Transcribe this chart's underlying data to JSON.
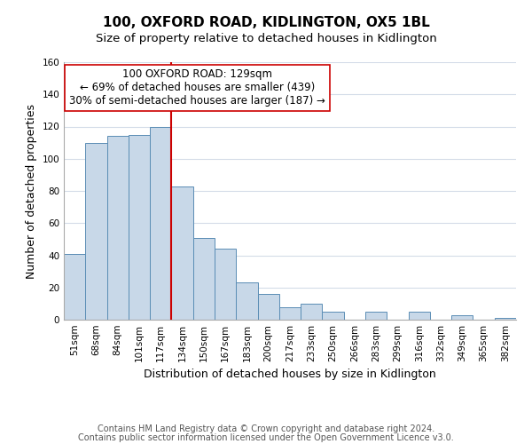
{
  "title": "100, OXFORD ROAD, KIDLINGTON, OX5 1BL",
  "subtitle": "Size of property relative to detached houses in Kidlington",
  "xlabel": "Distribution of detached houses by size in Kidlington",
  "ylabel": "Number of detached properties",
  "categories": [
    "51sqm",
    "68sqm",
    "84sqm",
    "101sqm",
    "117sqm",
    "134sqm",
    "150sqm",
    "167sqm",
    "183sqm",
    "200sqm",
    "217sqm",
    "233sqm",
    "250sqm",
    "266sqm",
    "283sqm",
    "299sqm",
    "316sqm",
    "332sqm",
    "349sqm",
    "365sqm",
    "382sqm"
  ],
  "values": [
    41,
    110,
    114,
    115,
    120,
    83,
    51,
    44,
    23,
    16,
    8,
    10,
    5,
    0,
    5,
    0,
    5,
    0,
    3,
    0,
    1
  ],
  "bar_color": "#c8d8e8",
  "bar_edge_color": "#5a8db5",
  "highlight_line_color": "#cc0000",
  "annotation_box_text": "100 OXFORD ROAD: 129sqm\n← 69% of detached houses are smaller (439)\n30% of semi-detached houses are larger (187) →",
  "annotation_box_color": "#ffffff",
  "annotation_box_edge_color": "#cc0000",
  "ylim": [
    0,
    160
  ],
  "yticks": [
    0,
    20,
    40,
    60,
    80,
    100,
    120,
    140,
    160
  ],
  "footer_line1": "Contains HM Land Registry data © Crown copyright and database right 2024.",
  "footer_line2": "Contains public sector information licensed under the Open Government Licence v3.0.",
  "background_color": "#ffffff",
  "grid_color": "#d4dce8",
  "title_fontsize": 11,
  "subtitle_fontsize": 9.5,
  "axis_label_fontsize": 9,
  "tick_fontsize": 7.5,
  "annotation_fontsize": 8.5,
  "footer_fontsize": 7
}
